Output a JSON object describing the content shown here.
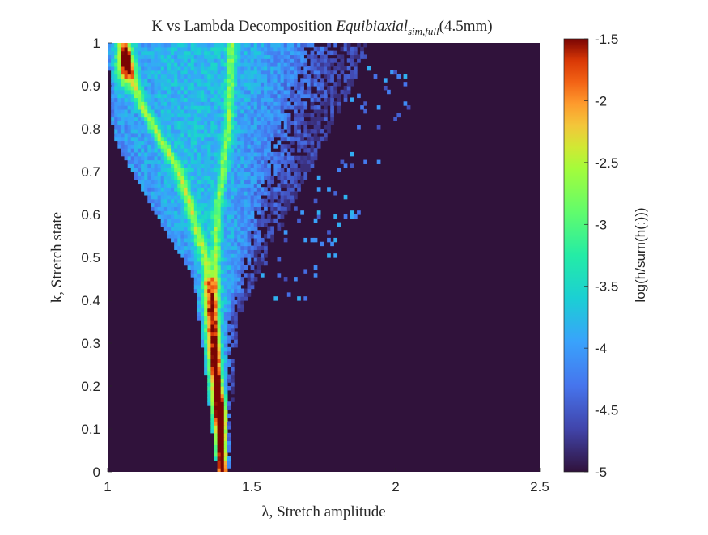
{
  "chart_data": {
    "type": "heatmap",
    "title_main": "K vs Lambda Decomposition ",
    "title_var": "Equibiaxial",
    "title_sub": "sim,full",
    "title_tail": "(4.5mm)",
    "xlabel": "λ, Stretch amplitude",
    "ylabel": "k, Stretch state",
    "colorbar_label": "log(h/sum(h(:)))",
    "xlim": [
      1,
      2.5
    ],
    "ylim": [
      0,
      1
    ],
    "clim": [
      -5,
      -1.5
    ],
    "x_ticks": [
      1,
      1.5,
      2,
      2.5
    ],
    "x_tick_labels": [
      "1",
      "1.5",
      "2",
      "2.5"
    ],
    "y_ticks": [
      0,
      0.1,
      0.2,
      0.3,
      0.4,
      0.5,
      0.6,
      0.7,
      0.8,
      0.9,
      1
    ],
    "y_tick_labels": [
      "0",
      "0.1",
      "0.2",
      "0.3",
      "0.4",
      "0.5",
      "0.6",
      "0.7",
      "0.8",
      "0.9",
      "1"
    ],
    "c_ticks": [
      -5,
      -4.5,
      -4,
      -3.5,
      -3,
      -2.5,
      -2,
      -1.5
    ],
    "c_tick_labels": [
      "-5",
      "-4.5",
      "-4",
      "-3.5",
      "-3",
      "-2.5",
      "-2",
      "-1.5"
    ],
    "colormap": "turbo",
    "background_color": "#30123b",
    "features": {
      "peak_top": {
        "lambda": 1.06,
        "k": 0.95,
        "value": -1.7
      },
      "peak_bottom": {
        "lambda": 1.4,
        "k": 0.12,
        "value": -1.9
      },
      "ridge_left_edge": [
        [
          1.4,
          0.0
        ],
        [
          1.36,
          0.3
        ],
        [
          1.34,
          0.5
        ],
        [
          1.25,
          0.7
        ],
        [
          1.12,
          0.85
        ],
        [
          1.05,
          1.0
        ]
      ],
      "ridge_inner": [
        [
          1.4,
          0.0
        ],
        [
          1.37,
          0.4
        ],
        [
          1.38,
          0.6
        ],
        [
          1.42,
          0.8
        ],
        [
          1.43,
          0.97
        ]
      ],
      "envelope_right": [
        [
          1.42,
          0.0
        ],
        [
          1.45,
          0.35
        ],
        [
          1.55,
          0.5
        ],
        [
          1.7,
          0.7
        ],
        [
          1.85,
          0.9
        ],
        [
          1.92,
          1.0
        ]
      ],
      "envelope_left": [
        [
          1.38,
          0.0
        ],
        [
          1.3,
          0.45
        ],
        [
          1.15,
          0.62
        ],
        [
          1.02,
          0.78
        ],
        [
          1.0,
          1.0
        ]
      ]
    }
  }
}
